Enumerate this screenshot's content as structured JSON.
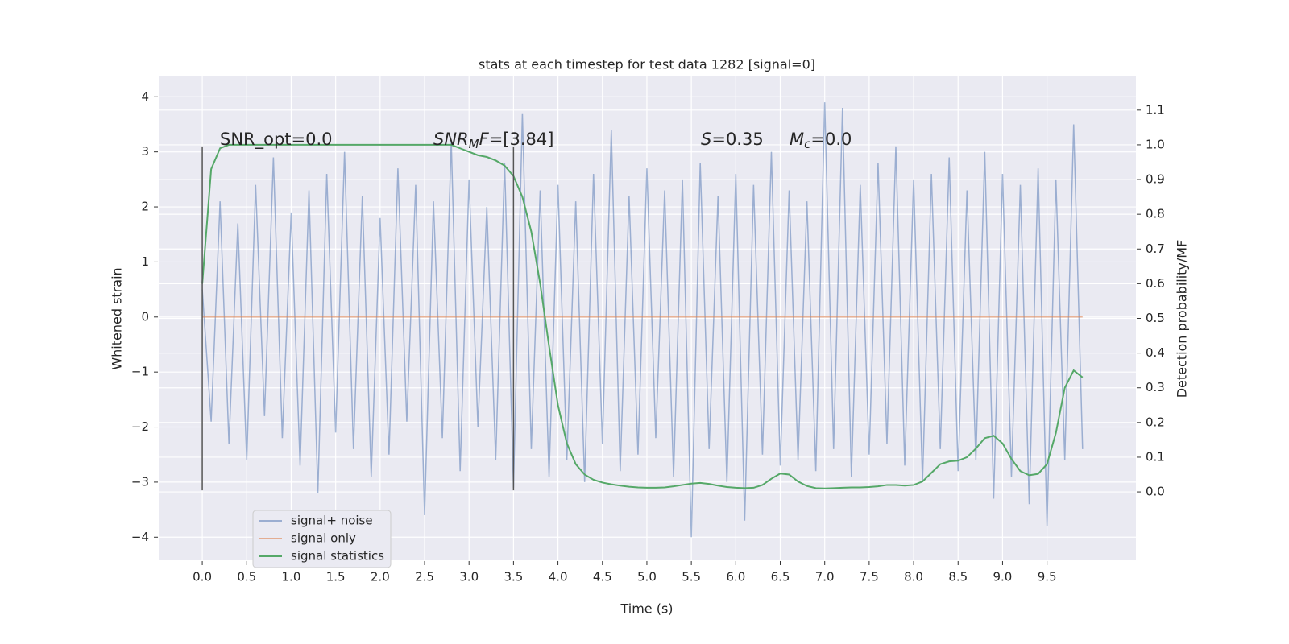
{
  "chart_data": {
    "type": "line",
    "title": "stats at each timestep for test data 1282 [signal=0]",
    "xlabel": "Time (s)",
    "ylabel": "Whitened strain",
    "y2label": "Detection probability/MF",
    "grid": true,
    "legend": "lower left",
    "xlim": [
      -0.49,
      10.5
    ],
    "ylim": [
      -4.42,
      4.37
    ],
    "y2lim": [
      -0.197,
      1.197
    ],
    "xticks": [
      {
        "value": 0,
        "label": "0.0"
      },
      {
        "value": 0.5,
        "label": "0.5"
      },
      {
        "value": 1,
        "label": "1.0"
      },
      {
        "value": 1.5,
        "label": "1.5"
      },
      {
        "value": 2,
        "label": "2.0"
      },
      {
        "value": 2.5,
        "label": "2.5"
      },
      {
        "value": 3,
        "label": "3.0"
      },
      {
        "value": 3.5,
        "label": "3.5"
      },
      {
        "value": 4,
        "label": "4.0"
      },
      {
        "value": 4.5,
        "label": "4.5"
      },
      {
        "value": 5,
        "label": "5.0"
      },
      {
        "value": 5.5,
        "label": "5.5"
      },
      {
        "value": 6,
        "label": "6.0"
      },
      {
        "value": 6.5,
        "label": "6.5"
      },
      {
        "value": 7,
        "label": "7.0"
      },
      {
        "value": 7.5,
        "label": "7.5"
      },
      {
        "value": 8,
        "label": "8.0"
      },
      {
        "value": 8.5,
        "label": "8.5"
      },
      {
        "value": 9,
        "label": "9.0"
      },
      {
        "value": 9.5,
        "label": "9.5"
      }
    ],
    "yticks": [
      {
        "value": -4,
        "label": "−4"
      },
      {
        "value": -3,
        "label": "−3"
      },
      {
        "value": -2,
        "label": "−2"
      },
      {
        "value": -1,
        "label": "−1"
      },
      0,
      1,
      2,
      3,
      4
    ],
    "y2ticks": [
      {
        "value": 0,
        "label": "0.0"
      },
      {
        "value": 0.1,
        "label": "0.1"
      },
      {
        "value": 0.2,
        "label": "0.2"
      },
      {
        "value": 0.3,
        "label": "0.3"
      },
      {
        "value": 0.4,
        "label": "0.4"
      },
      {
        "value": 0.5,
        "label": "0.5"
      },
      {
        "value": 0.6,
        "label": "0.6"
      },
      {
        "value": 0.7,
        "label": "0.7"
      },
      {
        "value": 0.8,
        "label": "0.8"
      },
      {
        "value": 0.9,
        "label": "0.9"
      },
      {
        "value": 1,
        "label": "1.0"
      },
      {
        "value": 1.1,
        "label": "1.1"
      }
    ],
    "annotations": [
      {
        "parts": [
          {
            "text": "SNR_opt=0.0",
            "style": "plain"
          }
        ]
      },
      {
        "parts": [
          {
            "text": "SNR",
            "style": "italic"
          },
          {
            "text": "M",
            "style": "sub"
          },
          {
            "text": "F",
            "style": "italic"
          },
          {
            "text": "=[3.84]",
            "style": "plain"
          }
        ]
      },
      {
        "parts": [
          {
            "text": "S",
            "style": "italic"
          },
          {
            "text": "=0.35",
            "style": "plain"
          }
        ]
      },
      {
        "parts": [
          {
            "text": "M",
            "style": "italic"
          },
          {
            "text": "c",
            "style": "sub"
          },
          {
            "text": "=0.0",
            "style": "plain"
          }
        ]
      }
    ],
    "vlines": [
      {
        "x": 0,
        "ymin": -3.15,
        "ymax": 3.1
      },
      {
        "x": 3.5,
        "ymin": -3.15,
        "ymax": 3.1
      }
    ],
    "x": [
      0,
      0.1,
      0.2,
      0.3,
      0.4,
      0.5,
      0.6,
      0.7,
      0.8,
      0.9,
      1,
      1.1,
      1.2,
      1.3,
      1.4,
      1.5,
      1.6,
      1.7,
      1.8,
      1.9,
      2,
      2.1,
      2.2,
      2.3,
      2.4,
      2.5,
      2.6,
      2.7,
      2.8,
      2.9,
      3,
      3.1,
      3.2,
      3.3,
      3.4,
      3.5,
      3.6,
      3.7,
      3.8,
      3.9,
      4,
      4.1,
      4.2,
      4.3,
      4.4,
      4.5,
      4.6,
      4.7,
      4.8,
      4.9,
      5,
      5.1,
      5.2,
      5.3,
      5.4,
      5.5,
      5.6,
      5.7,
      5.8,
      5.9,
      6,
      6.1,
      6.2,
      6.3,
      6.4,
      6.5,
      6.6,
      6.7,
      6.8,
      6.9,
      7,
      7.1,
      7.2,
      7.3,
      7.4,
      7.5,
      7.6,
      7.7,
      7.8,
      7.9,
      8,
      8.1,
      8.2,
      8.3,
      8.4,
      8.5,
      8.6,
      8.7,
      8.8,
      8.9,
      9,
      9.1,
      9.2,
      9.3,
      9.4,
      9.5,
      9.6,
      9.7,
      9.8,
      9.9
    ],
    "series": [
      {
        "name": "signal+ noise",
        "color": "#4c72b0",
        "opacity": 0.5,
        "values": [
          0.5,
          -1.9,
          2.1,
          -2.3,
          1.7,
          -2.6,
          2.4,
          -1.8,
          2.9,
          -2.2,
          1.9,
          -2.7,
          2.3,
          -3.2,
          2.6,
          -2.1,
          3.0,
          -2.4,
          2.2,
          -2.9,
          1.8,
          -2.5,
          2.7,
          -1.9,
          2.4,
          -3.6,
          2.1,
          -2.2,
          3.2,
          -2.8,
          2.5,
          -2.0,
          2.0,
          -2.6,
          2.8,
          -3.1,
          3.7,
          -2.4,
          2.3,
          -2.9,
          2.4,
          -2.6,
          2.1,
          -3.0,
          2.6,
          -2.3,
          3.4,
          -2.8,
          2.2,
          -2.5,
          2.7,
          -2.2,
          2.3,
          -2.9,
          2.5,
          -4.0,
          2.8,
          -2.4,
          2.2,
          -3.0,
          2.6,
          -3.7,
          2.4,
          -2.5,
          3.0,
          -2.7,
          2.3,
          -2.6,
          2.1,
          -2.8,
          3.9,
          -2.4,
          3.8,
          -2.9,
          2.4,
          -2.5,
          2.8,
          -2.3,
          3.1,
          -2.7,
          2.5,
          -3.0,
          2.6,
          -2.4,
          2.9,
          -2.8,
          2.3,
          -2.6,
          3.0,
          -3.3,
          2.6,
          -2.9,
          2.4,
          -3.4,
          2.7,
          -3.8,
          2.5,
          -2.6,
          3.5,
          -2.4
        ]
      },
      {
        "name": "signal only",
        "color": "#dd8452",
        "opacity": 0.6,
        "values": [
          0,
          0,
          0,
          0,
          0,
          0,
          0,
          0,
          0,
          0,
          0,
          0,
          0,
          0,
          0,
          0,
          0,
          0,
          0,
          0,
          0,
          0,
          0,
          0,
          0,
          0,
          0,
          0,
          0,
          0,
          0,
          0,
          0,
          0,
          0,
          0,
          0,
          0,
          0,
          0,
          0,
          0,
          0,
          0,
          0,
          0,
          0,
          0,
          0,
          0,
          0,
          0,
          0,
          0,
          0,
          0,
          0,
          0,
          0,
          0,
          0,
          0,
          0,
          0,
          0,
          0,
          0,
          0,
          0,
          0,
          0,
          0,
          0,
          0,
          0,
          0,
          0,
          0,
          0,
          0,
          0,
          0,
          0,
          0,
          0,
          0,
          0,
          0,
          0,
          0,
          0,
          0,
          0,
          0,
          0,
          0,
          0,
          0,
          0,
          0
        ]
      },
      {
        "name": "signal statistics",
        "color": "#55a868",
        "opacity": 1,
        "axis": "y2",
        "values": [
          0.6,
          0.93,
          0.99,
          1.0,
          1.0,
          1.0,
          1.0,
          1.0,
          1.0,
          1.0,
          1.0,
          1.0,
          1.0,
          1.0,
          1.0,
          1.0,
          1.0,
          1.0,
          1.0,
          1.0,
          1.0,
          1.0,
          1.0,
          1.0,
          1.0,
          1.0,
          1.0,
          1.0,
          1.0,
          0.99,
          0.98,
          0.97,
          0.965,
          0.955,
          0.94,
          0.91,
          0.85,
          0.75,
          0.6,
          0.42,
          0.25,
          0.14,
          0.08,
          0.05,
          0.035,
          0.027,
          0.022,
          0.018,
          0.015,
          0.013,
          0.012,
          0.012,
          0.013,
          0.016,
          0.02,
          0.024,
          0.026,
          0.023,
          0.018,
          0.014,
          0.012,
          0.011,
          0.012,
          0.02,
          0.038,
          0.053,
          0.05,
          0.03,
          0.017,
          0.011,
          0.01,
          0.011,
          0.012,
          0.013,
          0.013,
          0.014,
          0.016,
          0.02,
          0.02,
          0.018,
          0.02,
          0.03,
          0.055,
          0.08,
          0.088,
          0.09,
          0.1,
          0.125,
          0.155,
          0.162,
          0.14,
          0.095,
          0.06,
          0.048,
          0.052,
          0.08,
          0.17,
          0.3,
          0.35,
          0.33
        ]
      }
    ]
  }
}
